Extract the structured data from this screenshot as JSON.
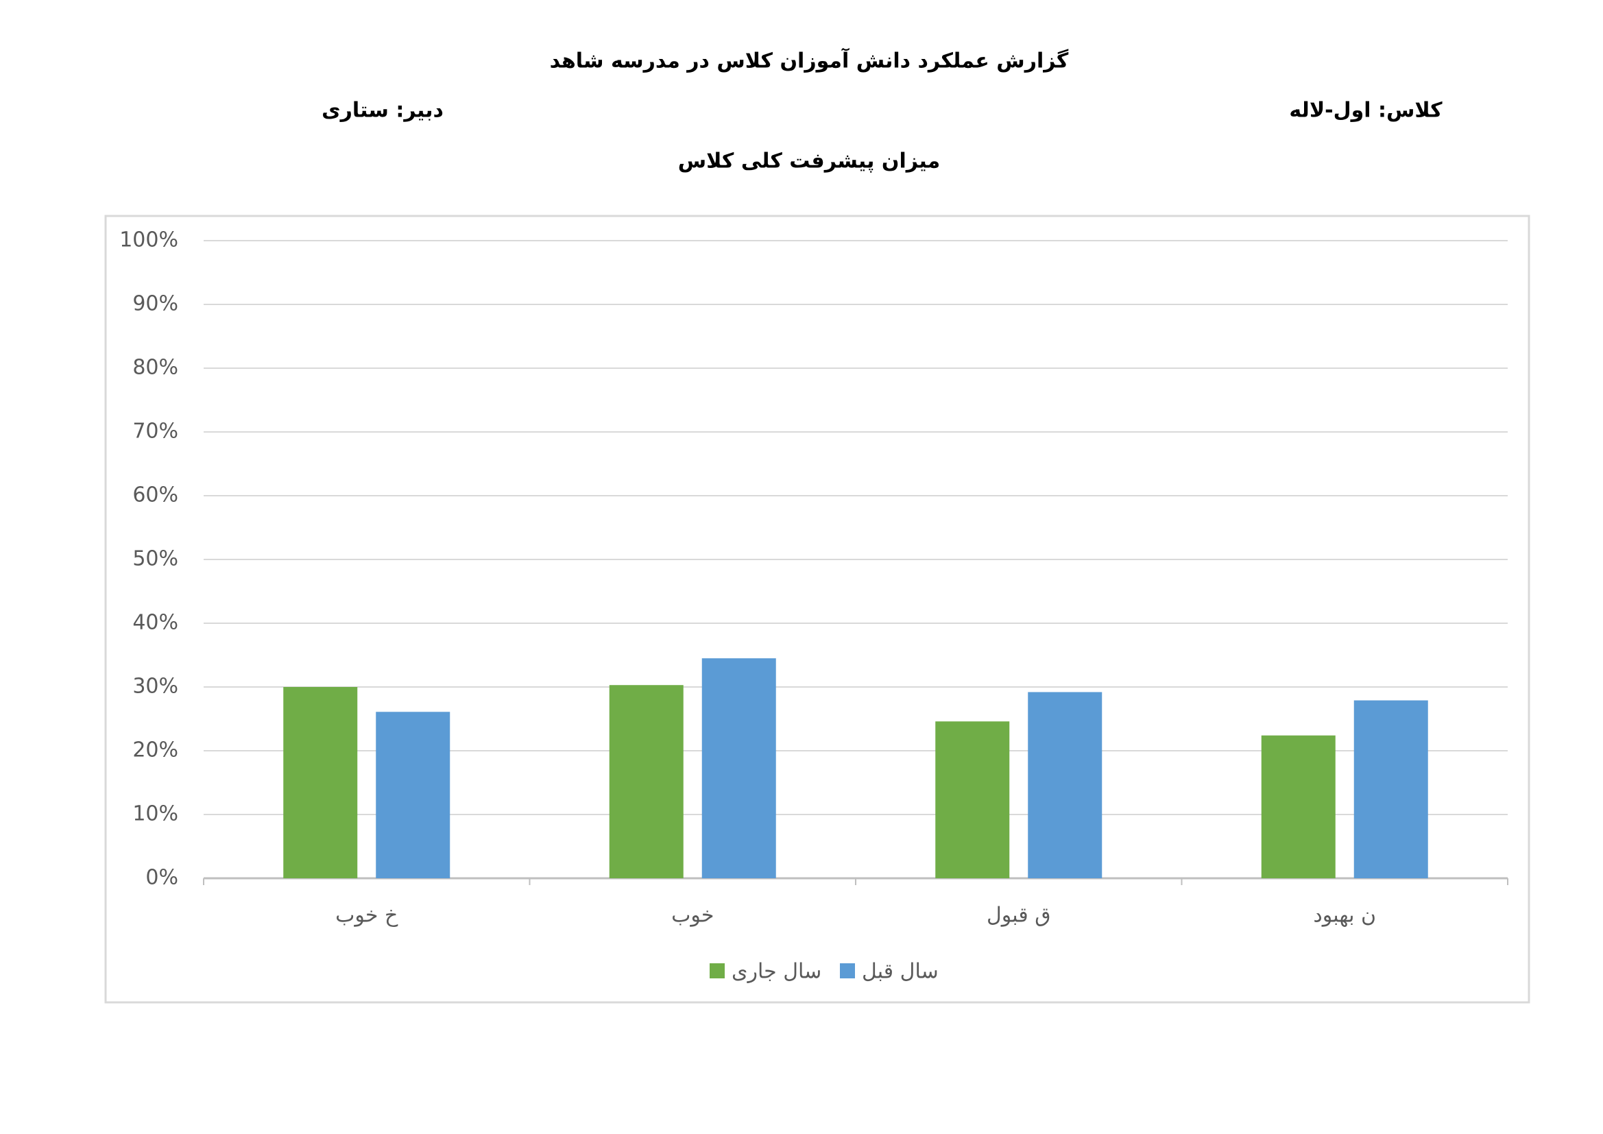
{
  "header": {
    "title": "گزارش عملکرد دانش آموزان کلاس در مدرسه شاهد",
    "teacher": "دبیر: ستاری",
    "class": "کلاس: اول-لاله"
  },
  "chart_data": {
    "type": "bar",
    "title": "میزان پیشرفت کلی کلاس",
    "categories": [
      "خ خوب",
      "خوب",
      "ق قبول",
      "ن بهبود"
    ],
    "series": [
      {
        "name": "سال جاری",
        "color": "#70ad47",
        "values": [
          30,
          30.3,
          24.6,
          22.4
        ]
      },
      {
        "name": "سال قبل",
        "color": "#5b9bd5",
        "values": [
          26.1,
          34.5,
          29.2,
          27.9
        ]
      }
    ],
    "ylim": [
      0,
      100
    ],
    "yticks": [
      {
        "value": 0,
        "label": "0%"
      },
      {
        "value": 10,
        "label": "10%"
      },
      {
        "value": 20,
        "label": "20%"
      },
      {
        "value": 30,
        "label": "30%"
      },
      {
        "value": 40,
        "label": "40%"
      },
      {
        "value": 50,
        "label": "50%"
      },
      {
        "value": 60,
        "label": "60%"
      },
      {
        "value": 70,
        "label": "70%"
      },
      {
        "value": 80,
        "label": "80%"
      },
      {
        "value": 90,
        "label": "90%"
      },
      {
        "value": 100,
        "label": "100%"
      }
    ],
    "grid": true,
    "legend": "bottom"
  }
}
